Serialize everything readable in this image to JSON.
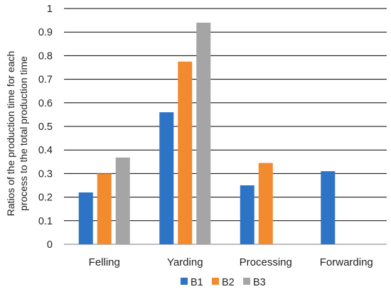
{
  "chart_data": {
    "type": "bar",
    "categories": [
      "Felling",
      "Yarding",
      "Processing",
      "Forwarding"
    ],
    "series": [
      {
        "name": "B1",
        "color": "#2E74C6",
        "values": [
          0.22,
          0.56,
          0.25,
          0.31
        ]
      },
      {
        "name": "B2",
        "color": "#F28A2E",
        "values": [
          0.3,
          0.775,
          0.345,
          null
        ]
      },
      {
        "name": "B3",
        "color": "#A5A5A5",
        "values": [
          0.368,
          0.94,
          null,
          null
        ]
      }
    ],
    "ylabel_lines": [
      "Ratios of the production time for each",
      "process to the total production time"
    ],
    "ylim": [
      0,
      1
    ],
    "yticks": [
      "0",
      "0.1",
      "0.2",
      "0.3",
      "0.4",
      "0.5",
      "0.6",
      "0.7",
      "0.8",
      "0.9",
      "1"
    ],
    "grid": true,
    "legend_position": "bottom"
  }
}
